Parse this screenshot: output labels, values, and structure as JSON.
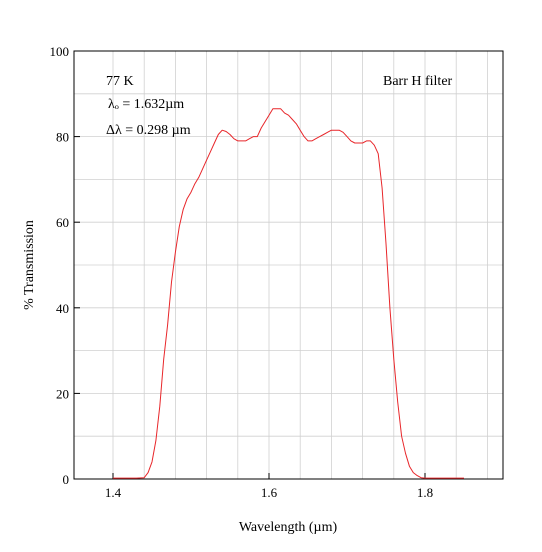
{
  "chart_data": {
    "type": "line",
    "title": "",
    "xlabel": "Wavelength (µm)",
    "ylabel": "% Transmission",
    "xlim": [
      1.35,
      1.9
    ],
    "ylim": [
      0,
      100
    ],
    "x_ticks": [
      {
        "value": 1.4,
        "label": "1.4"
      },
      {
        "value": 1.6,
        "label": "1.6"
      },
      {
        "value": 1.8,
        "label": "1.8"
      }
    ],
    "y_ticks": [
      {
        "value": 0,
        "label": "0"
      },
      {
        "value": 20,
        "label": "20"
      },
      {
        "value": 40,
        "label": "40"
      },
      {
        "value": 60,
        "label": "60"
      },
      {
        "value": 80,
        "label": "80"
      },
      {
        "value": 100,
        "label": "100"
      }
    ],
    "grid": true,
    "grid_x": [
      1.4,
      1.44,
      1.48,
      1.52,
      1.56,
      1.6,
      1.64,
      1.68,
      1.72,
      1.76,
      1.8,
      1.84,
      1.88
    ],
    "grid_y": [
      10,
      20,
      30,
      40,
      50,
      60,
      70,
      80,
      90
    ],
    "line_color": "#e8262a",
    "annotations": {
      "temperature": "77 K",
      "center_wavelength": "λₒ = 1.632µm",
      "bandwidth": "Δλ = 0.298 µm",
      "filter_name": "Barr H filter"
    },
    "series": [
      {
        "x": [
          1.4,
          1.41,
          1.42,
          1.43,
          1.44,
          1.445,
          1.45,
          1.455,
          1.46,
          1.465,
          1.47,
          1.475,
          1.48,
          1.485,
          1.49,
          1.495,
          1.5,
          1.505,
          1.51,
          1.515,
          1.52,
          1.525,
          1.53,
          1.535,
          1.54,
          1.545,
          1.55,
          1.555,
          1.56,
          1.565,
          1.57,
          1.575,
          1.58,
          1.585,
          1.59,
          1.595,
          1.6,
          1.605,
          1.61,
          1.615,
          1.62,
          1.625,
          1.63,
          1.635,
          1.64,
          1.645,
          1.65,
          1.655,
          1.66,
          1.665,
          1.67,
          1.675,
          1.68,
          1.685,
          1.69,
          1.695,
          1.7,
          1.705,
          1.71,
          1.715,
          1.72,
          1.725,
          1.73,
          1.735,
          1.74,
          1.745,
          1.75,
          1.755,
          1.76,
          1.765,
          1.77,
          1.775,
          1.78,
          1.785,
          1.79,
          1.795,
          1.8,
          1.805,
          1.81,
          1.815,
          1.82,
          1.83,
          1.84,
          1.85
        ],
        "y": [
          0.2,
          0.2,
          0.2,
          0.2,
          0.3,
          1.5,
          4,
          9,
          17,
          28,
          36,
          46,
          53,
          59,
          63,
          65.5,
          67,
          69,
          70.5,
          72.5,
          74.5,
          76.5,
          78.5,
          80.5,
          81.5,
          81.2,
          80.5,
          79.5,
          79,
          79,
          79,
          79.5,
          80,
          80,
          82,
          83.5,
          85,
          86.5,
          86.5,
          86.5,
          85.5,
          85,
          84,
          83,
          81.5,
          80,
          79,
          79,
          79.5,
          80,
          80.5,
          81,
          81.5,
          81.5,
          81.5,
          81,
          80,
          79,
          78.5,
          78.5,
          78.5,
          79,
          79,
          78,
          76,
          68,
          55,
          40,
          28,
          18,
          10,
          6,
          3,
          1.5,
          0.8,
          0.3,
          0.2,
          0.2,
          0.2,
          0.2,
          0.2,
          0.2,
          0.2,
          0.2
        ]
      }
    ]
  }
}
